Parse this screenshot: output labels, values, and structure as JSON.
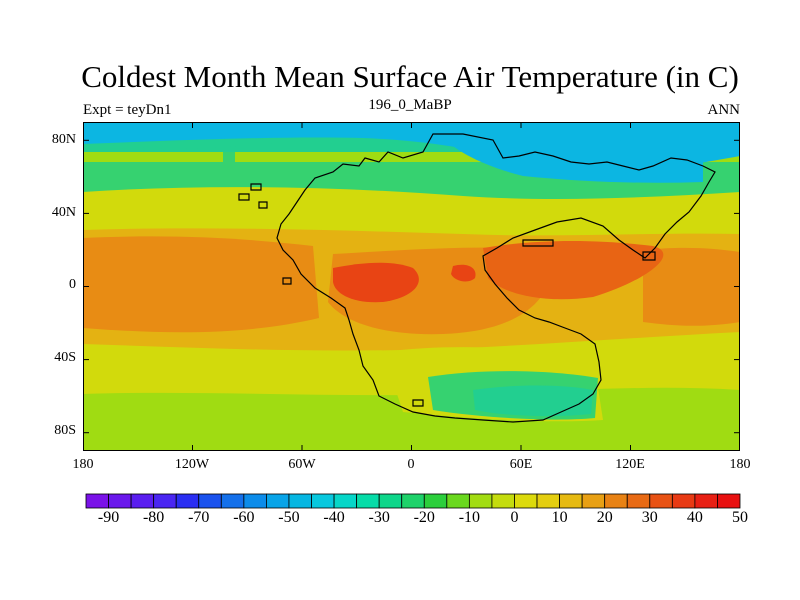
{
  "title": "Coldest Month Mean Surface Air Temperature (in C)",
  "expt_label": "Expt = teyDn1",
  "center_label": "196_0_MaBP",
  "period_label": "ANN",
  "lat_ticks": [
    "80N",
    "40N",
    "0",
    "40S",
    "80S"
  ],
  "lon_ticks": [
    "180",
    "120W",
    "60W",
    "0",
    "60E",
    "120E",
    "180"
  ],
  "colorbar": {
    "labels": [
      "-90",
      "-80",
      "-70",
      "-60",
      "-50",
      "-40",
      "-30",
      "-20",
      "-10",
      "0",
      "10",
      "20",
      "30",
      "40",
      "50"
    ],
    "colors": [
      "#7a12e8",
      "#6a18ec",
      "#5a1ef0",
      "#4a26f2",
      "#2a2ef2",
      "#1a52ee",
      "#1470ea",
      "#0c8cea",
      "#08a4e8",
      "#06b6e2",
      "#08c8de",
      "#06d6c8",
      "#06dca8",
      "#0ed68a",
      "#1ed26a",
      "#2ccf3c",
      "#6ad81e",
      "#a2dc12",
      "#c4dc0e",
      "#dcda0c",
      "#e4ce10",
      "#e6ba12",
      "#e8a014",
      "#e88214",
      "#e86a14",
      "#e85214",
      "#e83a14",
      "#e82014",
      "#e81010"
    ]
  },
  "map_colors": {
    "polar_ice": "#0cb6e2",
    "cold": "#22cf90",
    "cool": "#36d270",
    "mild": "#a0dc12",
    "temperate": "#d2da0c",
    "warm": "#e4b212",
    "hot": "#e88c14",
    "very_hot": "#e86414",
    "extreme": "#e84414"
  }
}
